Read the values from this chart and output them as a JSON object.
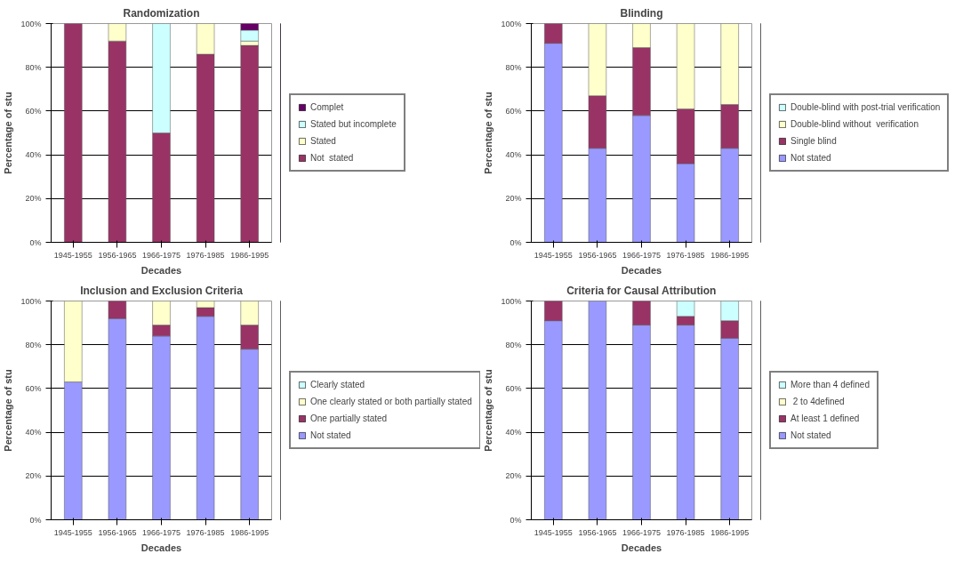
{
  "chart_data": [
    {
      "type": "bar",
      "stacked": true,
      "title": "Randomization",
      "xlabel": "Decades",
      "ylabel": "Percentage of stu",
      "categories": [
        "1945-1955",
        "1956-1965",
        "1966-1975",
        "1976-1985",
        "1986-1995"
      ],
      "ylim": [
        0,
        100
      ],
      "yticks": [
        {
          "value": 0,
          "label": "0%"
        },
        {
          "value": 20,
          "label": "20%"
        },
        {
          "value": 40,
          "label": "40%"
        },
        {
          "value": 60,
          "label": "60%"
        },
        {
          "value": 80,
          "label": "80%"
        },
        {
          "value": 100,
          "label": "100%"
        }
      ],
      "grid": "y",
      "legend": "right",
      "series": [
        {
          "name": "Not  stated",
          "color": "#993366",
          "values": [
            100,
            92,
            50,
            86,
            90
          ]
        },
        {
          "name": "Stated",
          "color": "#ffffcc",
          "values": [
            0,
            8,
            0,
            14,
            2
          ]
        },
        {
          "name": "Stated but incomplete",
          "color": "#ccffff",
          "values": [
            0,
            0,
            50,
            0,
            5
          ]
        },
        {
          "name": "Complet",
          "color": "#660066",
          "values": [
            0,
            0,
            0,
            0,
            3
          ]
        }
      ]
    },
    {
      "type": "bar",
      "stacked": true,
      "title": "Blinding",
      "xlabel": "Decades",
      "ylabel": "Percentage of stu",
      "categories": [
        "1945-1955",
        "1956-1965",
        "1966-1975",
        "1976-1985",
        "1986-1995"
      ],
      "ylim": [
        0,
        100
      ],
      "yticks": [
        {
          "value": 0,
          "label": "0%"
        },
        {
          "value": 20,
          "label": "20%"
        },
        {
          "value": 40,
          "label": "40%"
        },
        {
          "value": 60,
          "label": "60%"
        },
        {
          "value": 80,
          "label": "80%"
        },
        {
          "value": 100,
          "label": "100%"
        }
      ],
      "grid": "y",
      "legend": "right",
      "series": [
        {
          "name": "Not stated",
          "color": "#9999ff",
          "values": [
            91,
            43,
            58,
            36,
            43
          ]
        },
        {
          "name": "Single blind",
          "color": "#993366",
          "values": [
            9,
            24,
            31,
            25,
            20
          ]
        },
        {
          "name": "Double-blind without  verification",
          "color": "#ffffcc",
          "values": [
            0,
            33,
            11,
            39,
            37
          ]
        },
        {
          "name": "Double-blind with post-trial verification",
          "color": "#ccffff",
          "values": [
            0,
            0,
            0,
            0,
            0
          ]
        }
      ]
    },
    {
      "type": "bar",
      "stacked": true,
      "title": "Inclusion and Exclusion Criteria",
      "xlabel": "Decades",
      "ylabel": "Percentage of stu",
      "categories": [
        "1945-1955",
        "1956-1965",
        "1966-1975",
        "1976-1985",
        "1986-1995"
      ],
      "ylim": [
        0,
        100
      ],
      "yticks": [
        {
          "value": 0,
          "label": "0%"
        },
        {
          "value": 20,
          "label": "20%"
        },
        {
          "value": 40,
          "label": "40%"
        },
        {
          "value": 60,
          "label": "60%"
        },
        {
          "value": 80,
          "label": "80%"
        },
        {
          "value": 100,
          "label": "100%"
        }
      ],
      "grid": "y",
      "legend": "right",
      "series": [
        {
          "name": "Not stated",
          "color": "#9999ff",
          "values": [
            63,
            92,
            84,
            93,
            78
          ]
        },
        {
          "name": "One partially stated",
          "color": "#993366",
          "values": [
            0,
            8,
            5,
            4,
            11
          ]
        },
        {
          "name": "One clearly stated or both partially stated",
          "color": "#ffffcc",
          "values": [
            37,
            0,
            11,
            3,
            11
          ]
        },
        {
          "name": "Clearly stated",
          "color": "#ccffff",
          "values": [
            0,
            0,
            0,
            0,
            0
          ]
        }
      ]
    },
    {
      "type": "bar",
      "stacked": true,
      "title": "Criteria for Causal Attribution",
      "xlabel": "Decades",
      "ylabel": "Percentage of stu",
      "categories": [
        "1945-1955",
        "1956-1965",
        "1966-1975",
        "1976-1985",
        "1986-1995"
      ],
      "ylim": [
        0,
        100
      ],
      "yticks": [
        {
          "value": 0,
          "label": "0%"
        },
        {
          "value": 20,
          "label": "20%"
        },
        {
          "value": 40,
          "label": "40%"
        },
        {
          "value": 60,
          "label": "60%"
        },
        {
          "value": 80,
          "label": "80%"
        },
        {
          "value": 100,
          "label": "100%"
        }
      ],
      "grid": "y",
      "legend": "right",
      "series": [
        {
          "name": "Not stated",
          "color": "#9999ff",
          "values": [
            91,
            100,
            89,
            89,
            83
          ]
        },
        {
          "name": "At least 1 defined",
          "color": "#993366",
          "values": [
            9,
            0,
            11,
            4,
            8
          ]
        },
        {
          "name": " 2 to 4defined",
          "color": "#ffffcc",
          "values": [
            0,
            0,
            0,
            0,
            0
          ]
        },
        {
          "name": "More than 4 defined",
          "color": "#ccffff",
          "values": [
            0,
            0,
            0,
            7,
            9
          ]
        }
      ]
    }
  ]
}
